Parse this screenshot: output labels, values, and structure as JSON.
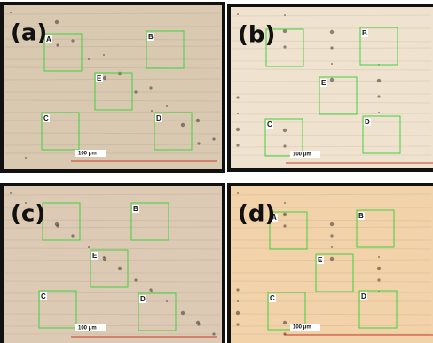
{
  "panels": [
    {
      "label": "(a)",
      "boxes": [
        {
          "label": "A"
        },
        {
          "label": "B"
        },
        {
          "label": "E"
        },
        {
          "label": "C"
        },
        {
          "label": "D"
        }
      ],
      "scale": "100 μm"
    },
    {
      "label": "(b)",
      "boxes": [
        {},
        {
          "label": "B"
        },
        {
          "label": "E"
        },
        {
          "label": "C"
        },
        {
          "label": "D"
        }
      ],
      "scale": "100 μm"
    },
    {
      "label": "(c)",
      "boxes": [
        {},
        {
          "label": "B"
        },
        {
          "label": "E"
        },
        {
          "label": "C"
        },
        {
          "label": "D"
        }
      ],
      "scale": "100 μm"
    },
    {
      "label": "(d)",
      "boxes": [
        {
          "label": "A"
        },
        {
          "label": "B"
        },
        {
          "label": "E"
        },
        {
          "label": "C"
        },
        {
          "label": "D"
        }
      ],
      "scale": "100 μm"
    }
  ]
}
